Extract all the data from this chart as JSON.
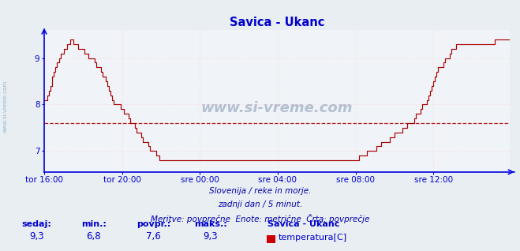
{
  "title": "Savica - Ukanc",
  "bg_color": "#e8eef2",
  "plot_bg_color": "#f0f4f8",
  "line_color": "#aa0000",
  "avg_line_color": "#aa0000",
  "avg_value": 7.6,
  "ymin": 6.55,
  "ymax": 9.6,
  "yticks": [
    7,
    8,
    9
  ],
  "xlabel_color": "#0000cc",
  "title_color": "#0000cc",
  "grid_color": "#ffcccc",
  "grid_color_major": "#ddaaaa",
  "axis_color": "#0000dd",
  "footer_line1": "Slovenija / reke in morje.",
  "footer_line2": "zadnji dan / 5 minut.",
  "footer_line3": "Meritve: povprečne  Enote: metrične  Črta: povprečje",
  "footer_color": "#0000aa",
  "label_sedaj": "sedaj:",
  "label_min": "min.:",
  "label_povpr": "povpr.:",
  "label_maks": "maks.:",
  "val_sedaj": "9,3",
  "val_min": "6,8",
  "val_povpr": "7,6",
  "val_maks": "9,3",
  "legend_title": "Savica - Ukanc",
  "legend_label": "temperatura[C]",
  "legend_color": "#cc0000",
  "watermark": "www.si-vreme.com",
  "left_label": "www.si-vreme.com",
  "n_points": 288,
  "x_tick_labels": [
    "tor 16:00",
    "tor 20:00",
    "sre 00:00",
    "sre 04:00",
    "sre 08:00",
    "sre 12:00"
  ],
  "x_tick_positions": [
    0,
    48,
    96,
    144,
    192,
    240
  ],
  "temp_data": [
    8.1,
    8.1,
    8.2,
    8.3,
    8.4,
    8.6,
    8.7,
    8.8,
    8.9,
    9.0,
    9.1,
    9.1,
    9.2,
    9.2,
    9.3,
    9.3,
    9.35,
    9.35,
    9.3,
    9.3,
    9.3,
    9.25,
    9.2,
    9.2,
    9.15,
    9.1,
    9.1,
    9.05,
    9.0,
    9.0,
    8.95,
    8.9,
    8.85,
    8.8,
    8.75,
    8.7,
    8.65,
    8.6,
    8.5,
    8.4,
    8.3,
    8.2,
    8.1,
    8.05,
    8.0,
    8.0,
    7.95,
    7.9,
    7.9,
    7.85,
    7.8,
    7.75,
    7.7,
    7.65,
    7.6,
    7.55,
    7.5,
    7.45,
    7.4,
    7.35,
    7.3,
    7.25,
    7.2,
    7.15,
    7.1,
    7.05,
    7.0,
    6.95,
    6.95,
    6.9,
    6.88,
    6.85,
    6.85,
    6.83,
    6.83,
    6.82,
    6.82,
    6.81,
    6.81,
    6.8,
    6.8,
    6.79,
    6.79,
    6.79,
    6.78,
    6.78,
    6.78,
    6.78,
    6.78,
    6.78,
    6.78,
    6.78,
    6.78,
    6.78,
    6.78,
    6.78,
    6.78,
    6.78,
    6.78,
    6.78,
    6.78,
    6.78,
    6.78,
    6.78,
    6.78,
    6.78,
    6.78,
    6.78,
    6.78,
    6.78,
    6.78,
    6.78,
    6.78,
    6.78,
    6.78,
    6.78,
    6.78,
    6.78,
    6.78,
    6.78,
    6.78,
    6.78,
    6.78,
    6.78,
    6.78,
    6.78,
    6.78,
    6.78,
    6.78,
    6.78,
    6.78,
    6.78,
    6.78,
    6.78,
    6.78,
    6.78,
    6.78,
    6.78,
    6.78,
    6.78,
    6.78,
    6.78,
    6.78,
    6.78,
    6.78,
    6.78,
    6.78,
    6.78,
    6.78,
    6.78,
    6.78,
    6.78,
    6.78,
    6.78,
    6.78,
    6.78,
    6.78,
    6.78,
    6.78,
    6.78,
    6.78,
    6.78,
    6.78,
    6.78,
    6.78,
    6.78,
    6.78,
    6.78,
    6.78,
    6.78,
    6.78,
    6.78,
    6.78,
    6.78,
    6.78,
    6.78,
    6.78,
    6.78,
    6.78,
    6.78,
    6.78,
    6.78,
    6.78,
    6.78,
    6.78,
    6.78,
    6.78,
    6.78,
    6.78,
    6.78,
    6.8,
    6.82,
    6.83,
    6.85,
    6.87,
    6.88,
    6.9,
    6.92,
    6.93,
    6.95,
    6.97,
    6.98,
    7.0,
    7.02,
    7.05,
    7.08,
    7.1,
    7.12,
    7.15,
    7.18,
    7.2,
    7.23,
    7.25,
    7.28,
    7.3,
    7.33,
    7.35,
    7.38,
    7.4,
    7.43,
    7.45,
    7.48,
    7.5,
    7.53,
    7.55,
    7.58,
    7.6,
    7.65,
    7.7,
    7.75,
    7.8,
    7.85,
    7.9,
    7.95,
    8.0,
    8.05,
    8.1,
    8.2,
    8.3,
    8.4,
    8.5,
    8.6,
    8.7,
    8.75,
    8.8,
    8.85,
    8.9,
    8.95,
    9.0,
    9.05,
    9.1,
    9.15,
    9.2,
    9.25,
    9.28,
    9.3,
    9.3,
    9.3,
    9.3,
    9.3,
    9.3,
    9.3,
    9.3,
    9.3,
    9.3,
    9.3,
    9.3,
    9.3,
    9.3,
    9.3,
    9.3,
    9.3,
    9.3,
    9.3,
    9.3,
    9.3,
    9.3,
    9.32,
    9.35,
    9.35
  ]
}
